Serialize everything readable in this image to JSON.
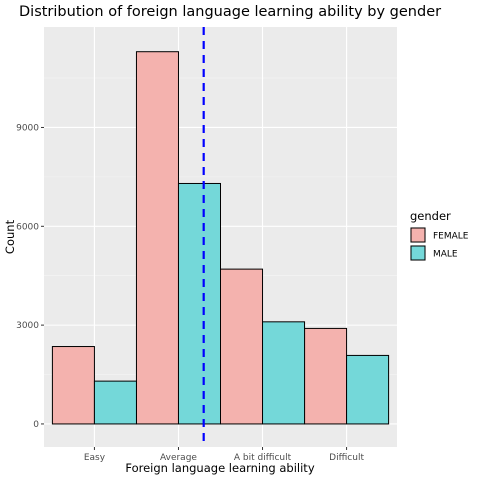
{
  "chart_data": {
    "type": "bar",
    "title": "Distribution of foreign language learning ability by gender",
    "xlabel": "Foreign language learning ability",
    "ylabel": "Count",
    "categories": [
      "Easy",
      "Average",
      "A bit difficult",
      "Difficult"
    ],
    "series": [
      {
        "name": "FEMALE",
        "color": "#F4B2AE",
        "values": [
          2350,
          11300,
          4700,
          2900
        ]
      },
      {
        "name": "MALE",
        "color": "#74D8D9",
        "values": [
          1300,
          7300,
          3100,
          2080
        ]
      }
    ],
    "y_ticks": [
      0,
      3000,
      6000,
      9000
    ],
    "ylim": [
      -700,
      12050
    ],
    "grid": true,
    "legend": {
      "title": "gender",
      "position": "right"
    },
    "reference_line": {
      "x": 2.3,
      "color": "#0000FF",
      "style": "dashed"
    }
  }
}
